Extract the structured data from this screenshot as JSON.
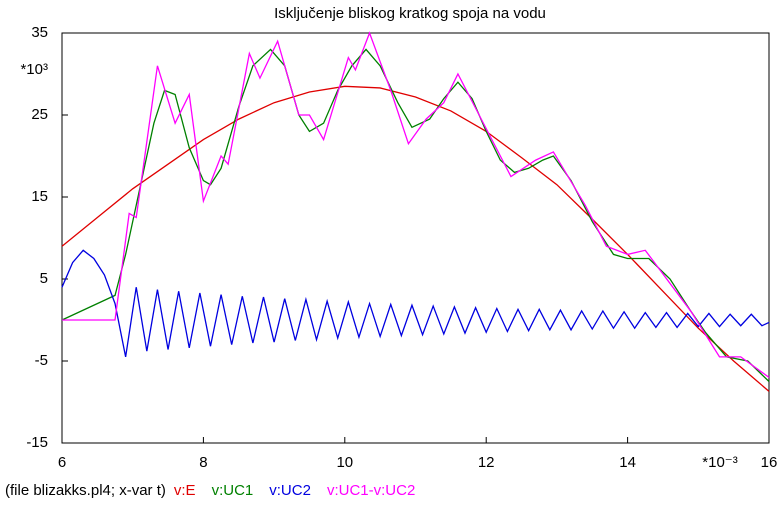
{
  "chart_data": {
    "type": "line",
    "title": "Isključenje bliskog kratkog spoja na vodu",
    "x_unit_label": "*10⁻³",
    "y_unit_label": "*10³",
    "footer": "(file blizakks.pl4; x-var t)",
    "xlim": [
      6,
      16
    ],
    "xticks": [
      6,
      8,
      10,
      12,
      14,
      16
    ],
    "ylim": [
      -15,
      35
    ],
    "yticks": [
      35,
      25,
      15,
      5,
      -5,
      -15
    ],
    "grid": false,
    "series": [
      {
        "name": "v:E",
        "color": "#e00000",
        "x": [
          6,
          6.5,
          7,
          7.5,
          8,
          8.5,
          9,
          9.5,
          10,
          10.5,
          11,
          11.5,
          12,
          12.5,
          13,
          13.5,
          14,
          14.5,
          15,
          15.5,
          16
        ],
        "values": [
          9,
          12.5,
          16,
          19,
          22,
          24.5,
          26.5,
          27.8,
          28.5,
          28.3,
          27.2,
          25.5,
          23,
          19.8,
          16.5,
          12.3,
          8,
          3.5,
          -1,
          -5,
          -8.7
        ]
      },
      {
        "name": "v:UC1",
        "color": "#008000",
        "x": [
          6,
          6.75,
          6.9,
          7.1,
          7.3,
          7.45,
          7.6,
          7.8,
          8.0,
          8.1,
          8.25,
          8.5,
          8.7,
          8.95,
          9.15,
          9.35,
          9.5,
          9.7,
          9.9,
          10.1,
          10.3,
          10.5,
          10.75,
          10.95,
          11.2,
          11.4,
          11.6,
          11.8,
          12.0,
          12.2,
          12.4,
          12.6,
          12.8,
          12.95,
          13.2,
          13.5,
          13.8,
          14.0,
          14.3,
          14.6,
          14.9,
          15.1,
          15.4,
          15.7,
          16
        ],
        "values": [
          0,
          3,
          8,
          16,
          24,
          28,
          27.5,
          21,
          17,
          16.5,
          18.5,
          26,
          31,
          33,
          31,
          25,
          23,
          24,
          28,
          31,
          33,
          31,
          26.5,
          23.5,
          24.5,
          27,
          29,
          27,
          23,
          19.5,
          18,
          18.5,
          19.5,
          20,
          17,
          12,
          8,
          7.5,
          7.5,
          5,
          1,
          -1.5,
          -4.5,
          -5,
          -7.5
        ]
      },
      {
        "name": "v:UC2",
        "color": "#0000e0",
        "x": [
          6,
          6.15,
          6.3,
          6.45,
          6.6,
          6.75,
          6.9,
          7.05,
          7.2,
          7.35,
          7.5,
          7.65,
          7.8,
          7.95,
          8.1,
          8.25,
          8.4,
          8.55,
          8.7,
          8.85,
          9.0,
          9.15,
          9.3,
          9.45,
          9.6,
          9.75,
          9.9,
          10.05,
          10.2,
          10.35,
          10.5,
          10.65,
          10.8,
          10.95,
          11.1,
          11.25,
          11.4,
          11.55,
          11.7,
          11.85,
          12.0,
          12.15,
          12.3,
          12.45,
          12.6,
          12.75,
          12.9,
          13.05,
          13.2,
          13.35,
          13.5,
          13.65,
          13.8,
          13.95,
          14.1,
          14.25,
          14.4,
          14.55,
          14.7,
          14.85,
          15.0,
          15.15,
          15.3,
          15.45,
          15.6,
          15.75,
          15.9,
          16
        ],
        "values": [
          4,
          7,
          8.5,
          7.5,
          5.5,
          2,
          -4.5,
          4.0,
          -3.8,
          3.7,
          -3.6,
          3.5,
          -3.4,
          3.3,
          -3.2,
          3.1,
          -3.0,
          2.9,
          -2.8,
          2.8,
          -2.7,
          2.6,
          -2.5,
          2.5,
          -2.4,
          2.3,
          -2.2,
          2.2,
          -2.1,
          2.0,
          -2.0,
          1.9,
          -1.9,
          1.8,
          -1.8,
          1.7,
          -1.7,
          1.6,
          -1.6,
          1.5,
          -1.5,
          1.4,
          -1.4,
          1.3,
          -1.3,
          1.3,
          -1.2,
          1.2,
          -1.2,
          1.1,
          -1.1,
          1.1,
          -1.0,
          1.0,
          -1.0,
          0.9,
          -0.9,
          0.9,
          -0.9,
          0.8,
          -0.8,
          0.8,
          -0.8,
          0.7,
          -0.7,
          0.7,
          -0.7,
          -0.3
        ]
      },
      {
        "name": "v:UC1-v:UC2",
        "color": "#ff00ff",
        "x": [
          6,
          6.75,
          6.95,
          7.05,
          7.35,
          7.6,
          7.8,
          8.0,
          8.25,
          8.35,
          8.65,
          8.8,
          9.05,
          9.35,
          9.5,
          9.7,
          10.05,
          10.15,
          10.35,
          10.65,
          10.9,
          11.15,
          11.4,
          11.6,
          11.9,
          12.35,
          12.7,
          12.95,
          13.4,
          13.7,
          14.0,
          14.25,
          14.9,
          15.3,
          15.6,
          16
        ],
        "values": [
          0,
          0,
          13,
          12.5,
          31,
          24,
          27.5,
          14.5,
          20,
          19,
          32.5,
          29.5,
          34,
          25,
          25,
          22,
          32,
          30.5,
          35,
          28,
          21.5,
          24.5,
          26.5,
          30,
          25,
          17.5,
          19.5,
          20.5,
          14,
          9,
          8,
          8.5,
          1,
          -4.5,
          -4.5,
          -7
        ]
      }
    ]
  }
}
